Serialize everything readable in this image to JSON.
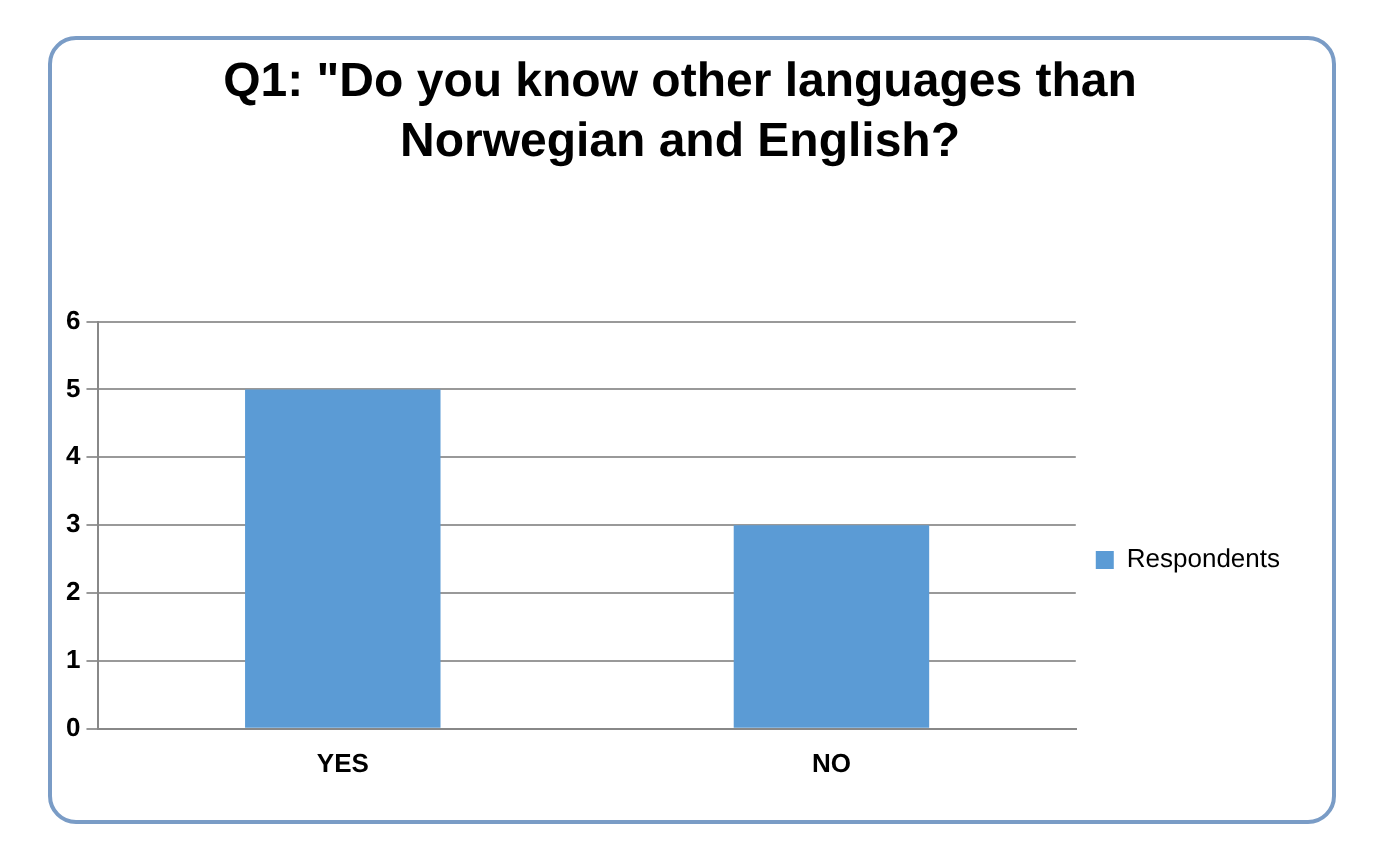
{
  "chart_data": {
    "type": "bar",
    "title": "Q1: \"Do you know other languages than Norwegian and English?",
    "categories": [
      "YES",
      "NO"
    ],
    "series": [
      {
        "name": "Respondents",
        "color": "#5b9bd5",
        "values": [
          5,
          3
        ]
      }
    ],
    "ylim": [
      0,
      6
    ],
    "yticks": [
      0,
      1,
      2,
      3,
      4,
      5,
      6
    ],
    "grid": "y",
    "legend": "right"
  }
}
